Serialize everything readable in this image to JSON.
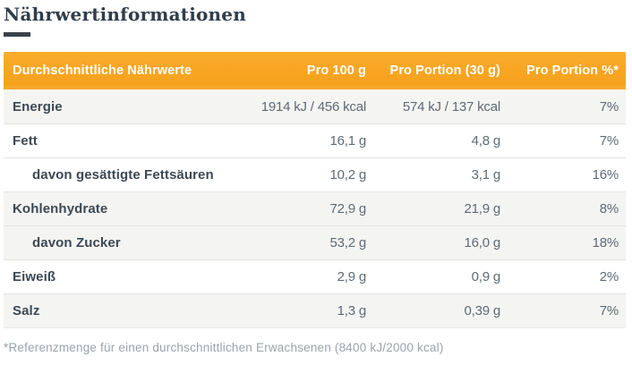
{
  "page": {
    "title": "Nährwertinformationen"
  },
  "colors": {
    "accent_orange": "#f6a11c",
    "title_navy": "#2f3d4c",
    "label_navy": "#3c4955",
    "value_gray": "#5e6a75",
    "row_shade_gray": "#f4f4f2",
    "divider_gray": "#e3e3e1",
    "footnote_gray": "#9aa4ad"
  },
  "table": {
    "headers": [
      "Durchschnittliche Nährwerte",
      "Pro 100 g",
      "Pro Portion (30 g)",
      "Pro Portion %*"
    ],
    "rows": [
      {
        "label": "Energie",
        "indent": false,
        "per_100g": "1914 kJ / 456 kcal",
        "per_portion": "574 kJ / 137 kcal",
        "percent": "7%",
        "shade": "gray"
      },
      {
        "label": "Fett",
        "indent": false,
        "per_100g": "16,1 g",
        "per_portion": "4,8 g",
        "percent": "7%",
        "shade": "white"
      },
      {
        "label": "davon gesättigte Fettsäuren",
        "indent": true,
        "per_100g": "10,2 g",
        "per_portion": "3,1 g",
        "percent": "16%",
        "shade": "white"
      },
      {
        "label": "Kohlenhydrate",
        "indent": false,
        "per_100g": "72,9 g",
        "per_portion": "21,9 g",
        "percent": "8%",
        "shade": "gray"
      },
      {
        "label": "davon Zucker",
        "indent": true,
        "per_100g": "53,2 g",
        "per_portion": "16,0 g",
        "percent": "18%",
        "shade": "gray"
      },
      {
        "label": "Eiweiß",
        "indent": false,
        "per_100g": "2,9 g",
        "per_portion": "0,9 g",
        "percent": "2%",
        "shade": "white"
      },
      {
        "label": "Salz",
        "indent": false,
        "per_100g": "1,3 g",
        "per_portion": "0,39 g",
        "percent": "7%",
        "shade": "gray"
      }
    ],
    "footnote": "*Referenzmenge für einen durchschnittlichen Erwachsenen (8400 kJ/2000 kcal)"
  }
}
